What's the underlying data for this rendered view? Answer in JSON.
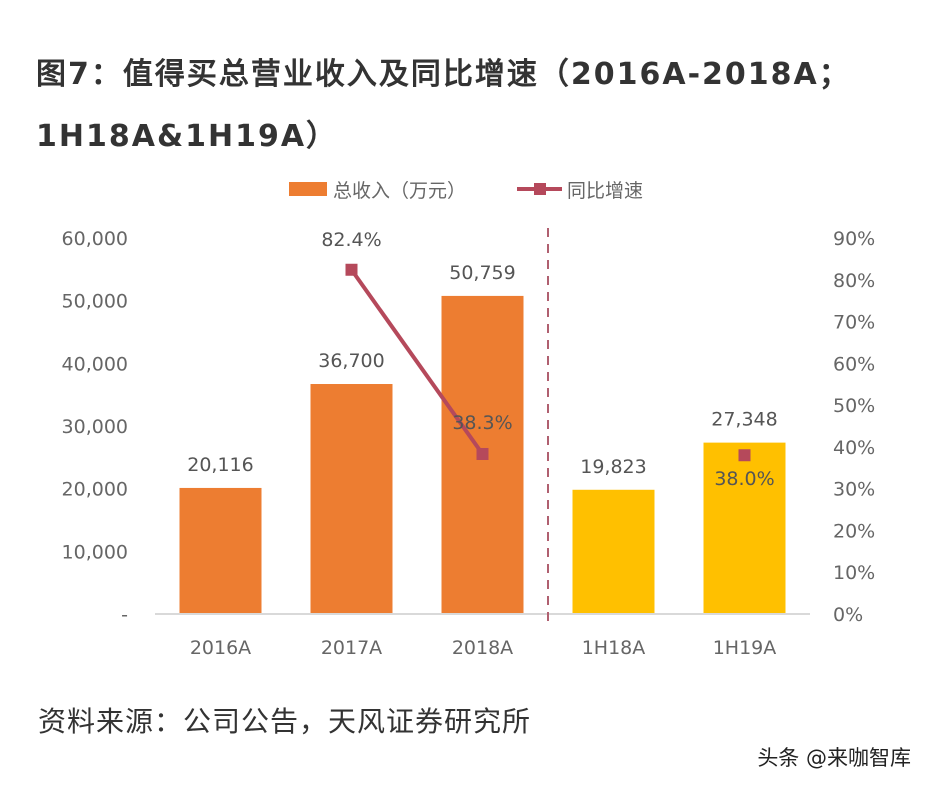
{
  "title_lines": [
    "图7：值得买总营业收入及同比增速（2016A-2018A；",
    "1H18A&1H19A）"
  ],
  "source": "资料来源：公司公告，天风证券研究所",
  "watermark": "头条 @来咖智库",
  "chart_data": {
    "type": "bar+line",
    "categories": [
      "2016A",
      "2017A",
      "2018A",
      "1H18A",
      "1H19A"
    ],
    "series": [
      {
        "name": "总收入（万元）",
        "type": "bar",
        "axis": "left",
        "values": [
          20116,
          36700,
          50759,
          19823,
          27348
        ],
        "labels": [
          "20,116",
          "36,700",
          "50,759",
          "19,823",
          "27,348"
        ],
        "colors": [
          "#ED7D31",
          "#ED7D31",
          "#ED7D31",
          "#FFC000",
          "#FFC000"
        ]
      },
      {
        "name": "同比增速",
        "type": "line",
        "axis": "right",
        "values": [
          null,
          82.4,
          38.3,
          null,
          38.0
        ],
        "labels": [
          "",
          "82.4%",
          "38.3%",
          "",
          "38.0%"
        ],
        "color": "#B5495B"
      }
    ],
    "left_axis": {
      "ylim": [
        0,
        60000
      ],
      "ticks": [
        "-",
        "10,000",
        "20,000",
        "30,000",
        "40,000",
        "50,000",
        "60,000"
      ]
    },
    "right_axis": {
      "ylim": [
        0,
        90
      ],
      "ticks": [
        "0%",
        "10%",
        "20%",
        "30%",
        "40%",
        "50%",
        "60%",
        "70%",
        "80%",
        "90%"
      ]
    },
    "divider": "dashed line between 2018A and 1H18A",
    "legend": "top",
    "grid": false
  }
}
